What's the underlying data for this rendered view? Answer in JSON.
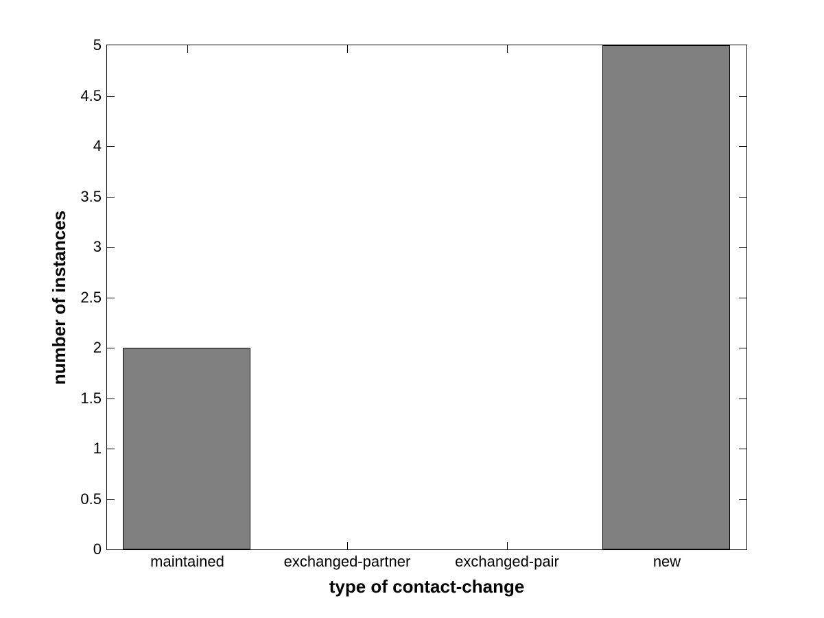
{
  "figure": {
    "background": "#ffffff"
  },
  "chart_data": {
    "type": "bar",
    "categories": [
      "maintained",
      "exchanged-partner",
      "exchanged-pair",
      "new"
    ],
    "values": [
      2,
      0,
      0,
      5
    ],
    "title": "",
    "xlabel": "type of contact-change",
    "ylabel": "number of instances",
    "xlim": [
      0.5,
      4.5
    ],
    "ylim": [
      0,
      5
    ],
    "yticks": [
      0,
      0.5,
      1,
      1.5,
      2,
      2.5,
      3,
      3.5,
      4,
      4.5,
      5
    ],
    "ytick_labels": [
      "0",
      "0.5",
      "1",
      "1.5",
      "2",
      "2.5",
      "3",
      "3.5",
      "4",
      "4.5",
      "5"
    ],
    "bar_color": "#808080",
    "bar_edge_color": "#000000",
    "axis_color": "#000000",
    "bar_width_fraction": 0.8,
    "grid": false,
    "legend": "none",
    "tick_direction": "in"
  }
}
